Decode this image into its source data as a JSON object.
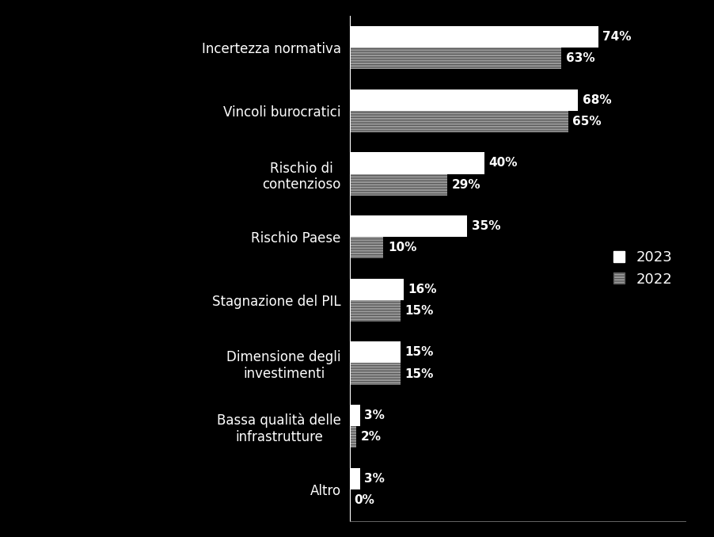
{
  "chart_data": {
    "type": "bar",
    "orientation": "horizontal",
    "categories": [
      "Incertezza normativa",
      "Vincoli burocratici",
      "Rischio di contenzioso",
      "Rischio Paese",
      "Stagnazione del PIL",
      "Dimensione degli investimenti",
      "Bassa qualità delle infrastrutture",
      "Altro"
    ],
    "series": [
      {
        "name": "2023",
        "color": "#ffffff",
        "values": [
          74,
          68,
          40,
          35,
          16,
          15,
          3,
          3
        ],
        "value_labels": [
          "74%",
          "68%",
          "40%",
          "35%",
          "16%",
          "15%",
          "3%",
          "3%"
        ]
      },
      {
        "name": "2022",
        "color": "#9a9a9a",
        "values": [
          63,
          65,
          29,
          10,
          15,
          15,
          2,
          0
        ],
        "value_labels": [
          "63%",
          "65%",
          "29%",
          "10%",
          "15%",
          "15%",
          "2%",
          "0%"
        ]
      }
    ],
    "xlim": [
      0,
      100
    ],
    "xticks": [],
    "tick_labels": "y",
    "data_labels": true,
    "legend": "center right",
    "grid": false
  }
}
